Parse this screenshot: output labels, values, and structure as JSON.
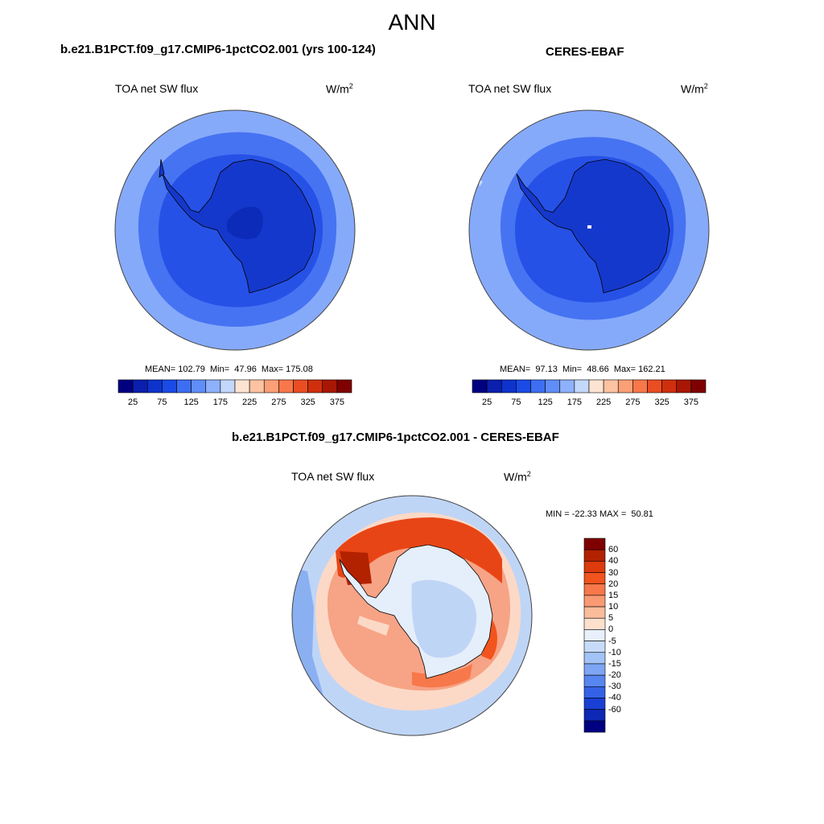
{
  "main_title": "ANN",
  "panels": [
    {
      "id": "model",
      "title": "b.e21.B1PCT.f09_g17.CMIP6-1pctCO2.001 (yrs 100-124)",
      "variable": "TOA net SW flux",
      "units_base": "W/m",
      "units_exp": "2",
      "stats": "MEAN= 102.79  Min=  47.96  Max= 175.08"
    },
    {
      "id": "obs",
      "title": "CERES-EBAF",
      "variable": "TOA net SW flux",
      "units_base": "W/m",
      "units_exp": "2",
      "stats": "MEAN=  97.13  Min=  48.66  Max= 162.21"
    }
  ],
  "diff_panel": {
    "title": "b.e21.B1PCT.f09_g17.CMIP6-1pctCO2.001 - CERES-EBAF",
    "variable": "TOA net SW flux",
    "units_base": "W/m",
    "units_exp": "2",
    "stats": "MIN = -22.33 MAX =  50.81"
  },
  "colorbar_abs": {
    "colors": [
      "#000080",
      "#0a1fae",
      "#0d33cc",
      "#1a4be6",
      "#3d6ef2",
      "#5f8ef8",
      "#8eb1fb",
      "#c3d8fb",
      "#fde4d2",
      "#fcc2a2",
      "#fb9f76",
      "#f7774b",
      "#ea4d22",
      "#cf2f0c",
      "#a81704",
      "#7f0000"
    ],
    "tick_labels": [
      "25",
      "75",
      "125",
      "175",
      "225",
      "275",
      "325",
      "375"
    ]
  },
  "colorbar_diff": {
    "colors": [
      "#7f0000",
      "#b22200",
      "#dd3a0d",
      "#f2541d",
      "#f7784a",
      "#f99a73",
      "#fbbc9b",
      "#fde0cc",
      "#e8f0fb",
      "#c7dbf9",
      "#a3c3f6",
      "#7ea6f4",
      "#5886f0",
      "#3461e6",
      "#1a3fd3",
      "#0d28b5",
      "#000080"
    ],
    "tick_labels": [
      "60",
      "40",
      "30",
      "20",
      "15",
      "10",
      "5",
      "0",
      "-5",
      "-10",
      "-15",
      "-20",
      "-30",
      "-40",
      "-60"
    ]
  },
  "map_colors": {
    "ocean_outer": "#86aafa",
    "ocean_mid": "#4673f2",
    "ocean_inner": "#2651e6",
    "ice": "#1538cc",
    "ice_core": "#0b2bb8",
    "diff_warm_strong": "#e84516",
    "diff_warm": "#f7a385",
    "diff_warm_light": "#fcd9c6",
    "diff_neutral": "#e5eefb",
    "diff_cool": "#bfd5f6",
    "diff_cool_strong": "#8ab0f2"
  }
}
